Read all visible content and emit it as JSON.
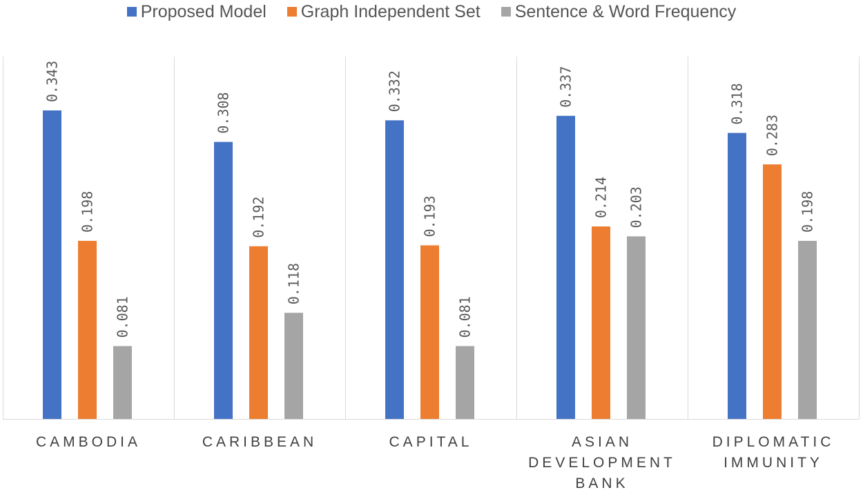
{
  "chart_data": {
    "type": "bar",
    "categories": [
      [
        "CAMBODIA"
      ],
      [
        "CARIBBEAN"
      ],
      [
        "CAPITAL"
      ],
      [
        "ASIAN",
        "DEVELOPMENT",
        "BANK"
      ],
      [
        "DIPLOMATIC",
        "IMMUNITY"
      ]
    ],
    "series": [
      {
        "name": "Proposed Model",
        "color": "#4472C4",
        "values": [
          0.343,
          0.308,
          0.332,
          0.337,
          0.318
        ]
      },
      {
        "name": "Graph Independent Set",
        "color": "#ED7D31",
        "values": [
          0.198,
          0.192,
          0.193,
          0.214,
          0.283
        ]
      },
      {
        "name": "Sentence & Word Frequency",
        "color": "#A5A5A5",
        "values": [
          0.081,
          0.118,
          0.081,
          0.203,
          0.198
        ]
      }
    ],
    "value_labels": [
      [
        "0.343",
        "0.198",
        "0.081"
      ],
      [
        "0.308",
        "0.192",
        "0.118"
      ],
      [
        "0.332",
        "0.193",
        "0.081"
      ],
      [
        "0.337",
        "0.214",
        "0.203"
      ],
      [
        "0.318",
        "0.283",
        "0.198"
      ]
    ],
    "ylim": [
      0,
      0.4
    ],
    "grid": false,
    "category_separators": true,
    "legend_position": "top"
  }
}
